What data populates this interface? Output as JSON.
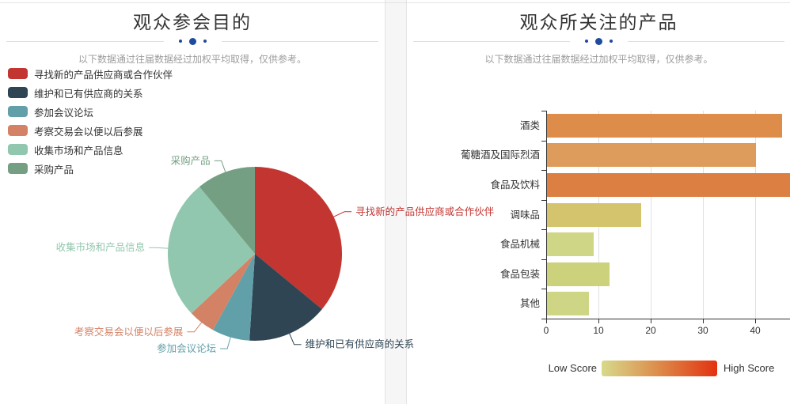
{
  "page": {
    "accent_dot_color": "#1e4b9e",
    "card_border_color": "#e4e4e4",
    "divider_line_color": "#e0e0e0",
    "title_color": "#333333",
    "subtitle_color": "#9c9c9c"
  },
  "chart_data": [
    {
      "type": "pie",
      "title": "观众参会目的",
      "subtitle": "以下数据通过往届数据经过加权平均取得，仅供参考。",
      "legend_position": "top-left",
      "start_angle_deg": 90,
      "clockwise": true,
      "unit": "percent",
      "labels": [
        "寻找新的产品供应商或合作伙伴",
        "维护和已有供应商的关系",
        "参加会议论坛",
        "考察交易会以便以后参展",
        "收集市场和产品信息",
        "采购产品"
      ],
      "values": [
        36,
        15,
        7,
        5,
        26,
        11
      ],
      "colors": [
        "#c23531",
        "#2f4554",
        "#61a0a8",
        "#d48265",
        "#91c7ae",
        "#749f83"
      ]
    },
    {
      "type": "bar",
      "orientation": "horizontal",
      "title": "观众所关注的产品",
      "subtitle": "以下数据通过往届数据经过加权平均取得，仅供参考。",
      "categories": [
        "酒类",
        "葡糖酒及国际烈酒",
        "食品及饮料",
        "调味品",
        "食品机械",
        "食品包装",
        "其他"
      ],
      "values": [
        45,
        40,
        47,
        18,
        9,
        12,
        8
      ],
      "bar_colors": [
        "#dd8c4a",
        "#dd9c5c",
        "#dc7f43",
        "#d4c46e",
        "#cfd685",
        "#ccd17b",
        "#ced584"
      ],
      "x_ticks": [
        "0",
        "10",
        "20",
        "30",
        "40"
      ],
      "xlim": [
        0,
        47
      ],
      "grid": true,
      "axis_color": "#333333",
      "grid_color": "#e0e0e0",
      "visual_map": {
        "low_label": "Low Score",
        "high_label": "High Score",
        "gradient": [
          "#d7da8b",
          "#dd8a4a",
          "#e23210"
        ]
      }
    }
  ]
}
